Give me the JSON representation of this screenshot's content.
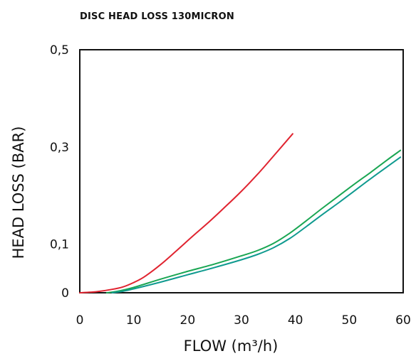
{
  "chart_data": {
    "type": "line",
    "title": "DISC HEAD LOSS 130MICRON",
    "xlabel": "FLOW (m³/h)",
    "ylabel": "HEAD LOSS (BAR)",
    "xlim": [
      0,
      60
    ],
    "ylim": [
      0,
      0.5
    ],
    "grid": false,
    "xticks": [
      {
        "value": 0,
        "label": "0"
      },
      {
        "value": 10,
        "label": "10"
      },
      {
        "value": 20,
        "label": "20"
      },
      {
        "value": 30,
        "label": "30"
      },
      {
        "value": 40,
        "label": "40"
      },
      {
        "value": 50,
        "label": "50"
      },
      {
        "value": 60,
        "label": "60"
      }
    ],
    "yticks": [
      {
        "value": 0,
        "label": "0"
      },
      {
        "value": 0.1,
        "label": "0,1"
      },
      {
        "value": 0.3,
        "label": "0,3"
      },
      {
        "value": 0.5,
        "label": "0,5"
      }
    ],
    "series": [
      {
        "color": "#e02430",
        "x": [
          0,
          3,
          6,
          8,
          10,
          12,
          15,
          18,
          21,
          24,
          27,
          30,
          33,
          36,
          39.5
        ],
        "y": [
          0,
          0.002,
          0.007,
          0.012,
          0.021,
          0.033,
          0.058,
          0.087,
          0.117,
          0.146,
          0.177,
          0.209,
          0.244,
          0.282,
          0.327
        ]
      },
      {
        "color": "#1aa653",
        "x": [
          5,
          7,
          10,
          15,
          20,
          25,
          30,
          33,
          36,
          39,
          42,
          45,
          48,
          51,
          54,
          57,
          59.5
        ],
        "y": [
          0,
          0.003,
          0.011,
          0.028,
          0.044,
          0.059,
          0.076,
          0.087,
          0.102,
          0.123,
          0.148,
          0.174,
          0.199,
          0.224,
          0.248,
          0.273,
          0.293
        ]
      },
      {
        "color": "#0f9a8f",
        "x": [
          6,
          8,
          10,
          15,
          20,
          25,
          30,
          33,
          36,
          39,
          42,
          45,
          48,
          51,
          54,
          57,
          59.5
        ],
        "y": [
          0,
          0.003,
          0.008,
          0.022,
          0.037,
          0.052,
          0.068,
          0.079,
          0.093,
          0.112,
          0.136,
          0.161,
          0.185,
          0.21,
          0.235,
          0.259,
          0.279
        ]
      }
    ]
  }
}
